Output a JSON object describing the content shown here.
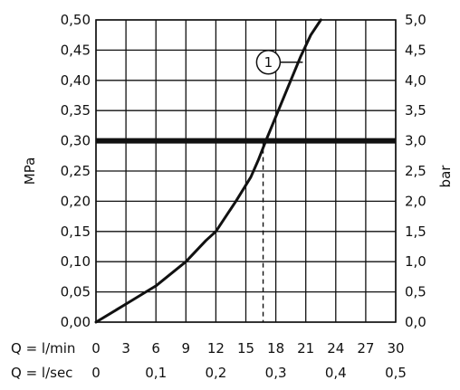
{
  "chart_data": {
    "type": "line",
    "ylabel_left": "MPa",
    "ylabel_right": "bar",
    "x_ticks_lmin": [
      "0",
      "3",
      "6",
      "9",
      "12",
      "15",
      "18",
      "21",
      "24",
      "27",
      "30"
    ],
    "x_ticks_lsec": [
      "0",
      "0,1",
      "0,2",
      "0,3",
      "0,4",
      "0,5"
    ],
    "x_ticks_lsec_values": [
      0,
      6,
      12,
      18,
      24,
      30
    ],
    "xlabel_lmin": "Q = l/min",
    "xlabel_lsec": "Q = l/sec",
    "y_ticks_left": [
      "0,00",
      "0,05",
      "0,10",
      "0,15",
      "0,20",
      "0,25",
      "0,30",
      "0,35",
      "0,40",
      "0,45",
      "0,50"
    ],
    "y_ticks_right": [
      "0,0",
      "0,5",
      "1,0",
      "1,5",
      "2,0",
      "2,5",
      "3,0",
      "3,5",
      "4,0",
      "4,5",
      "5,0"
    ],
    "xlim": [
      0,
      30
    ],
    "ylim": [
      0,
      0.5
    ],
    "grid": true,
    "series": [
      {
        "name": "1",
        "x": [
          0,
          3,
          6,
          9,
          11,
          12,
          14,
          15.5,
          16.3,
          17,
          19,
          20.5,
          21.5,
          22.5
        ],
        "y": [
          0,
          0.03,
          0.06,
          0.1,
          0.135,
          0.15,
          0.2,
          0.24,
          0.27,
          0.3,
          0.38,
          0.44,
          0.475,
          0.5
        ]
      }
    ],
    "reference_line": {
      "y": 0.3
    },
    "operating_point": {
      "x": 17,
      "y": 0.3
    },
    "callout": {
      "label": "1",
      "x": 20.7,
      "y": 0.43
    }
  }
}
